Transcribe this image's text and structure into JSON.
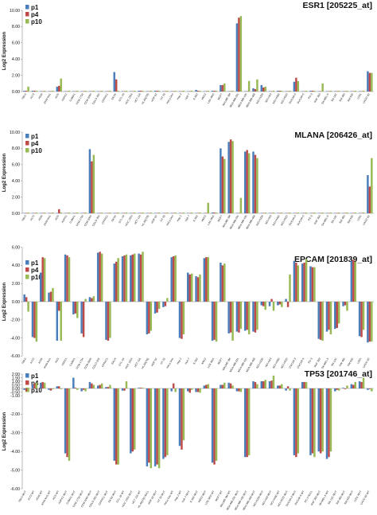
{
  "colors": {
    "p1": "#4a7ebb",
    "p4": "#be4b48",
    "p10": "#98b954"
  },
  "legend": [
    "p1",
    "p4",
    "p10"
  ],
  "ylabel": "Log2 Expression",
  "chart_data": [
    {
      "type": "bar",
      "title": "ESR1 [205225_at]",
      "ylim": [
        0,
        10
      ],
      "ticks": [
        "10.00",
        "8.00",
        "6.00",
        "4.00",
        "2.00",
        "0.00"
      ],
      "tickvals": [
        10,
        8,
        6,
        4,
        2,
        0
      ],
      "categories": [
        "786-0",
        "A172",
        "A549",
        "A549 fos1",
        "AGS",
        "ASPC1",
        "CAMA1",
        "CCM 1734",
        "CCM 2005",
        "COLO 205",
        "CFPAC1",
        "EKVX",
        "GTL-16",
        "HCC 1954",
        "HCT 116",
        "HL-60(TB)",
        "HOP 62",
        "HT 29",
        "HeLa Dco",
        "Hep 2",
        "Huh 7",
        "K-562",
        "KM12",
        "LOX IMVI",
        "MCF7",
        "MALME-3M",
        "MDA-MB-231",
        "MDA-MB-435",
        "MDA-MB-468",
        "NCI-H226",
        "NCI-H23",
        "NCI-H460",
        "NCI-H522",
        "OVCAR-3",
        "OVCAR-5",
        "PC-3",
        "RXF 393",
        "SK-MEL-5",
        "SN 12C",
        "SW 480",
        "SW 620",
        "U251",
        "UACC-62"
      ],
      "series": [
        {
          "name": "p1",
          "values": [
            0.1,
            0.1,
            0.05,
            0.05,
            0.6,
            0.05,
            0.05,
            0.05,
            0.05,
            0.05,
            0.05,
            2.4,
            0.05,
            0.05,
            0.1,
            0.05,
            0.1,
            0.05,
            0.05,
            0.05,
            0.05,
            0.2,
            0.05,
            0.1,
            0.8,
            0.05,
            8.4,
            0.05,
            0.4,
            0.8,
            0.05,
            0.1,
            0.05,
            1.2,
            0.05,
            0.1,
            0.05,
            0.05,
            0.05,
            0.05,
            0.05,
            0.05,
            2.5
          ]
        },
        {
          "name": "p4",
          "values": [
            0.1,
            0.1,
            0.05,
            0.05,
            0.7,
            0.05,
            0.05,
            0.05,
            0.05,
            0.05,
            0.05,
            1.5,
            0.05,
            0.05,
            0.1,
            0.05,
            0.1,
            0.05,
            0.05,
            0.05,
            0.05,
            0.1,
            0.05,
            0.1,
            0.8,
            0.05,
            9.1,
            0.05,
            0.3,
            0.5,
            0.05,
            0.1,
            0.05,
            1.7,
            0.05,
            0.1,
            0.05,
            0.05,
            0.05,
            0.05,
            0.05,
            0.05,
            2.3
          ]
        },
        {
          "name": "p10",
          "values": [
            0.6,
            0.1,
            0.1,
            0.1,
            1.6,
            0.1,
            0.1,
            0.1,
            0.1,
            0.1,
            0.1,
            0.1,
            0.1,
            0.1,
            0.1,
            0.1,
            0.1,
            0.1,
            0.1,
            0.1,
            0.1,
            0.1,
            0.1,
            0.1,
            1.0,
            0.1,
            9.3,
            1.3,
            1.5,
            0.6,
            0.1,
            0.1,
            0.1,
            1.3,
            0.1,
            0.1,
            1.0,
            0.1,
            0.1,
            0.1,
            0.1,
            0.1,
            2.3
          ]
        }
      ]
    },
    {
      "type": "bar",
      "title": "MLANA [206426_at]",
      "ylim": [
        0,
        10
      ],
      "ticks": [
        "10.00",
        "8.00",
        "6.00",
        "4.00",
        "2.00",
        "0.00"
      ],
      "tickvals": [
        10,
        8,
        6,
        4,
        2,
        0
      ],
      "categories": [
        "786-0",
        "A172",
        "A549",
        "A549 fos1",
        "AGS",
        "ASPC1",
        "CAMA1",
        "CCM 1734",
        "CCM 2005",
        "COLO 205",
        "CFPAC1",
        "EKVX",
        "GTL-16",
        "HCC 1954",
        "HCT 116",
        "HL-60(TB)",
        "HOP 62",
        "HT 29",
        "HeLa Dco",
        "Hep 2",
        "Huh 7",
        "K-562",
        "KM12",
        "LOX IMVI",
        "MCF7",
        "MALME-3M",
        "MDA-MB-231",
        "MDA-MB-435",
        "MDA-MB-468",
        "NCI-H226",
        "NCI-H23",
        "NCI-H460",
        "NCI-H522",
        "OVCAR-3",
        "OVCAR-5",
        "PC-3",
        "RXF 393",
        "SK-MEL-5",
        "SN 12C",
        "SW 480",
        "SW 620",
        "U251",
        "UACC-62"
      ],
      "series": [
        {
          "name": "p1",
          "values": [
            0.05,
            0.05,
            0.05,
            0.05,
            0.05,
            0.05,
            0.05,
            0.05,
            7.9,
            0.05,
            0.05,
            0.05,
            0.05,
            0.05,
            0.05,
            0.05,
            0.05,
            0.05,
            0.05,
            0.05,
            0.05,
            0.05,
            0.05,
            0.1,
            8.0,
            8.8,
            0.05,
            7.6,
            7.6,
            0.05,
            0.05,
            0.05,
            0.05,
            0.05,
            0.05,
            0.05,
            0.05,
            0.05,
            0.05,
            0.05,
            0.05,
            0.05,
            4.7
          ]
        },
        {
          "name": "p4",
          "values": [
            0.05,
            0.05,
            0.05,
            0.05,
            0.5,
            0.05,
            0.05,
            0.05,
            6.4,
            0.05,
            0.05,
            0.05,
            0.05,
            0.05,
            0.05,
            0.05,
            0.05,
            0.05,
            0.05,
            0.05,
            0.05,
            0.05,
            0.05,
            0.1,
            7.0,
            9.1,
            0.05,
            7.8,
            7.2,
            0.05,
            0.05,
            0.05,
            0.05,
            0.05,
            0.05,
            0.05,
            0.05,
            0.05,
            0.05,
            0.05,
            0.05,
            0.05,
            3.3
          ]
        },
        {
          "name": "p10",
          "values": [
            0.1,
            0.1,
            0.1,
            0.1,
            0.1,
            0.1,
            0.1,
            0.1,
            7.2,
            0.1,
            0.1,
            0.1,
            0.1,
            0.1,
            0.1,
            0.1,
            0.1,
            0.1,
            0.1,
            0.1,
            0.1,
            0.1,
            1.3,
            0.1,
            6.7,
            8.9,
            1.9,
            7.4,
            6.8,
            0.1,
            0.1,
            0.1,
            0.1,
            0.1,
            0.1,
            0.1,
            0.1,
            0.1,
            0.1,
            0.1,
            0.1,
            0.1,
            6.8
          ]
        }
      ]
    },
    {
      "type": "bar",
      "title": "EPCAM [201839_at]",
      "ylim": [
        -6,
        6
      ],
      "ticks": [
        "6.00",
        "4.00",
        "2.00",
        "0.00",
        "-2.00",
        "-4.00",
        "-6.00"
      ],
      "tickvals": [
        6,
        4,
        2,
        0,
        -2,
        -4,
        -6
      ],
      "categories": [
        "786-0",
        "A172",
        "A549",
        "A549 fos1",
        "AGS",
        "ASPC1",
        "CAMA1",
        "CCM 1734",
        "CCM 2005",
        "COLO 205",
        "CFPAC1",
        "EKVX",
        "GTL-16",
        "HCC 1954",
        "HCT 116",
        "HL-60(TB)",
        "HOP 62",
        "HT 29",
        "HeLa Dco",
        "Hep 2",
        "Huh 7",
        "K-562",
        "KM12",
        "LOX IMVI",
        "MCF7",
        "MALME-3M",
        "MDA-MB-231",
        "MDA-MB-435",
        "MDA-MB-468",
        "NCI-H226",
        "NCI-H23",
        "NCI-H460",
        "NCI-H522",
        "OVCAR-3",
        "OVCAR-5",
        "PC-3",
        "RXF 393",
        "SK-MEL-5",
        "SN 12C",
        "SW 480",
        "SW 620",
        "U251",
        "UACC-62"
      ],
      "series": [
        {
          "name": "p1",
          "values": [
            0.8,
            -3.9,
            3.2,
            1.0,
            -4.3,
            5.2,
            -1.4,
            -3.5,
            0.5,
            5.4,
            -4.2,
            4.2,
            5.0,
            5.1,
            5.3,
            -3.6,
            -1.3,
            -0.6,
            4.9,
            -4.0,
            3.2,
            2.8,
            4.8,
            -4.3,
            4.3,
            -3.5,
            -3.3,
            -3.2,
            -3.3,
            -0.4,
            -0.5,
            -0.4,
            0.3,
            4.5,
            4.2,
            3.9,
            -4.1,
            -3.3,
            -3.0,
            -0.5,
            4.5,
            -3.8,
            -4.5
          ]
        },
        {
          "name": "p4",
          "values": [
            0.5,
            -4.0,
            4.9,
            1.1,
            -1.0,
            5.1,
            -1.3,
            -3.9,
            0.4,
            5.5,
            -4.3,
            4.4,
            5.1,
            5.2,
            5.2,
            -3.5,
            -1.2,
            -0.5,
            5.0,
            -4.1,
            3.0,
            2.7,
            4.9,
            -4.2,
            4.0,
            -3.4,
            -3.4,
            -3.1,
            -3.4,
            -0.5,
            0.3,
            -0.3,
            -0.6,
            4.3,
            4.3,
            3.8,
            -4.2,
            -3.1,
            -2.9,
            -0.4,
            4.6,
            -3.9,
            -4.4
          ]
        },
        {
          "name": "p10",
          "values": [
            -1.1,
            -4.4,
            4.8,
            1.5,
            -4.3,
            4.9,
            -1.8,
            0.3,
            0.6,
            5.3,
            -4.0,
            4.8,
            5.2,
            5.3,
            5.5,
            -3.2,
            -0.8,
            0.4,
            5.1,
            -3.6,
            3.1,
            3.0,
            4.9,
            -4.4,
            4.2,
            -4.3,
            -3.0,
            -3.6,
            -3.1,
            -0.9,
            -1.0,
            -0.6,
            3.0,
            4.0,
            4.7,
            3.8,
            -4.3,
            -3.6,
            -2.4,
            -1.0,
            4.4,
            -3.1,
            -4.4
          ]
        }
      ]
    },
    {
      "type": "bar",
      "title": "TP53 [201746_at]",
      "ylim": [
        -6,
        2
      ],
      "ticks": [
        "2.00",
        "1.50",
        "1.00",
        "0.50",
        "0.00",
        "-0.50",
        "-1.00",
        "-2.00",
        "-3.00",
        "-4.00",
        "-5.00",
        "-6.00"
      ],
      "tickvals": [
        2,
        1.5,
        1,
        0.5,
        0,
        -0.5,
        -1,
        -2,
        -3,
        -4,
        -5,
        -6
      ],
      "categories": [
        "786-0 MUT",
        "A172 WT",
        "A549 WT",
        "A549 fos1 WT",
        "AGS WT",
        "ASPC1 MUT",
        "CAMA1 MUT",
        "CCM 1734 MUT",
        "CCM 2005 MUT",
        "COLO 205 MUT",
        "CFPAC1 MUT",
        "EKVX MUT",
        "GTL-16 WT",
        "HCC 1954 MUT",
        "HCT 116 WT",
        "HL-60(TB) NULL",
        "HOP 62 MUT",
        "HT 29 MUT",
        "HeLa Dco WT",
        "Hep 2 WT",
        "Huh 7 MUT",
        "K-562 MUT",
        "KM12 MUT",
        "LOX IMVI WT",
        "MCF7 WT",
        "MALME-3M WT",
        "MDA-MB-231 MUT",
        "MDA-MB-435 MUT",
        "MDA-MB-468 MUT",
        "NCI-H226 MUT",
        "NCI-H23 MUT",
        "NCI-H460 WT",
        "NCI-H522 MUT",
        "OVCAR-3 MUT",
        "OVCAR-5 WT",
        "PC-3 NULL",
        "RXF 393 MUT",
        "SK-MEL-5 WT",
        "SN 12C MUT",
        "SW 480 MUT",
        "SW 620 MUT",
        "U251 MUT",
        "UACC-62 WT"
      ],
      "series": [
        {
          "name": "p1",
          "values": [
            -0.2,
            0.6,
            0.8,
            -0.2,
            0.3,
            -4.1,
            1.5,
            -0.4,
            0.9,
            0.4,
            0.2,
            -4.5,
            -0.3,
            -4.1,
            0.1,
            -4.8,
            -4.8,
            -4.4,
            -0.4,
            -3.7,
            -0.4,
            -0.5,
            0.4,
            -4.6,
            0.5,
            0.8,
            -0.4,
            -4.3,
            1.0,
            1.0,
            1.0,
            0.4,
            -0.3,
            -4.2,
            0.9,
            -4.2,
            -4.0,
            -4.4,
            -0.4,
            0.1,
            0.6,
            1.0,
            -0.2
          ]
        },
        {
          "name": "p4",
          "values": [
            -0.4,
            0.7,
            0.9,
            -0.3,
            0.3,
            -4.3,
            0.1,
            -0.2,
            0.7,
            0.5,
            0.2,
            -4.7,
            -0.3,
            -4.0,
            0.1,
            -4.6,
            -4.7,
            -4.3,
            0.7,
            -3.9,
            -0.6,
            -0.5,
            0.5,
            -4.7,
            0.5,
            0.7,
            -0.4,
            -4.3,
            0.9,
            1.0,
            1.1,
            0.4,
            0.3,
            -4.3,
            0.9,
            -4.1,
            -4.1,
            -4.3,
            -0.2,
            -0.1,
            0.5,
            0.9,
            -0.1
          ]
        },
        {
          "name": "p10",
          "values": [
            -0.5,
            0.8,
            0.8,
            -0.1,
            -0.1,
            -4.5,
            -0.2,
            -0.4,
            0.5,
            0.7,
            0.5,
            -4.7,
            1.0,
            -3.9,
            0.1,
            -4.9,
            -4.9,
            -4.2,
            -0.5,
            -3.4,
            -0.2,
            -0.6,
            0.6,
            -4.5,
            0.8,
            0.4,
            -0.5,
            -4.2,
            0.6,
            1.2,
            1.8,
            0.6,
            -0.3,
            -4.1,
            0.9,
            -4.3,
            -4.0,
            -4.0,
            -0.3,
            0.4,
            0.9,
            1.5,
            -0.4
          ]
        }
      ]
    }
  ]
}
